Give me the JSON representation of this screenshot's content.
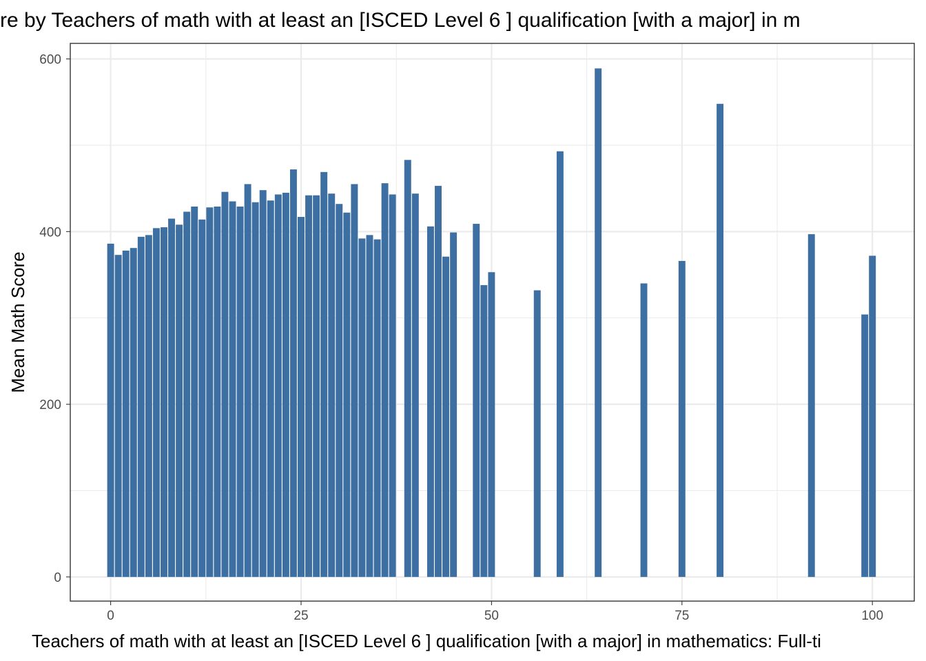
{
  "chart_data": {
    "type": "bar",
    "title": "re by Teachers of math with at least an [ISCED Level 6 ] qualification [with a major] in m",
    "xlabel": "Teachers of math with at least an [ISCED Level 6 ] qualification [with a major] in mathematics: Full-ti",
    "ylabel": "Mean Math Score",
    "xlim": [
      -5.3,
      105.5
    ],
    "ylim": [
      -28,
      618
    ],
    "x_ticks": [
      0,
      25,
      50,
      75,
      100
    ],
    "x_tick_labels": [
      "0",
      "25",
      "50",
      "75",
      "100"
    ],
    "y_ticks": [
      0,
      200,
      400,
      600
    ],
    "y_tick_labels": [
      "0",
      "200",
      "400",
      "600"
    ],
    "grid": true,
    "legend": "none",
    "bar_color": "#3e6fa3",
    "x": [
      0,
      1,
      2,
      3,
      4,
      5,
      6,
      7,
      8,
      9,
      10,
      11,
      12,
      13,
      14,
      15,
      16,
      17,
      18,
      19,
      20,
      21,
      22,
      23,
      24,
      25,
      26,
      27,
      28,
      29,
      30,
      31,
      32,
      33,
      34,
      35,
      36,
      37,
      39,
      40,
      42,
      43,
      44,
      45,
      48,
      49,
      50,
      56,
      59,
      64,
      70,
      75,
      80,
      92,
      99,
      100
    ],
    "values": [
      386,
      373,
      378,
      381,
      394,
      396,
      404,
      405,
      415,
      408,
      423,
      429,
      414,
      428,
      429,
      446,
      435,
      429,
      455,
      434,
      448,
      436,
      443,
      445,
      472,
      417,
      442,
      442,
      469,
      444,
      432,
      422,
      455,
      392,
      396,
      391,
      456,
      443,
      483,
      444,
      406,
      453,
      371,
      399,
      409,
      338,
      353,
      332,
      493,
      589,
      340,
      366,
      548,
      397,
      304,
      372
    ]
  }
}
